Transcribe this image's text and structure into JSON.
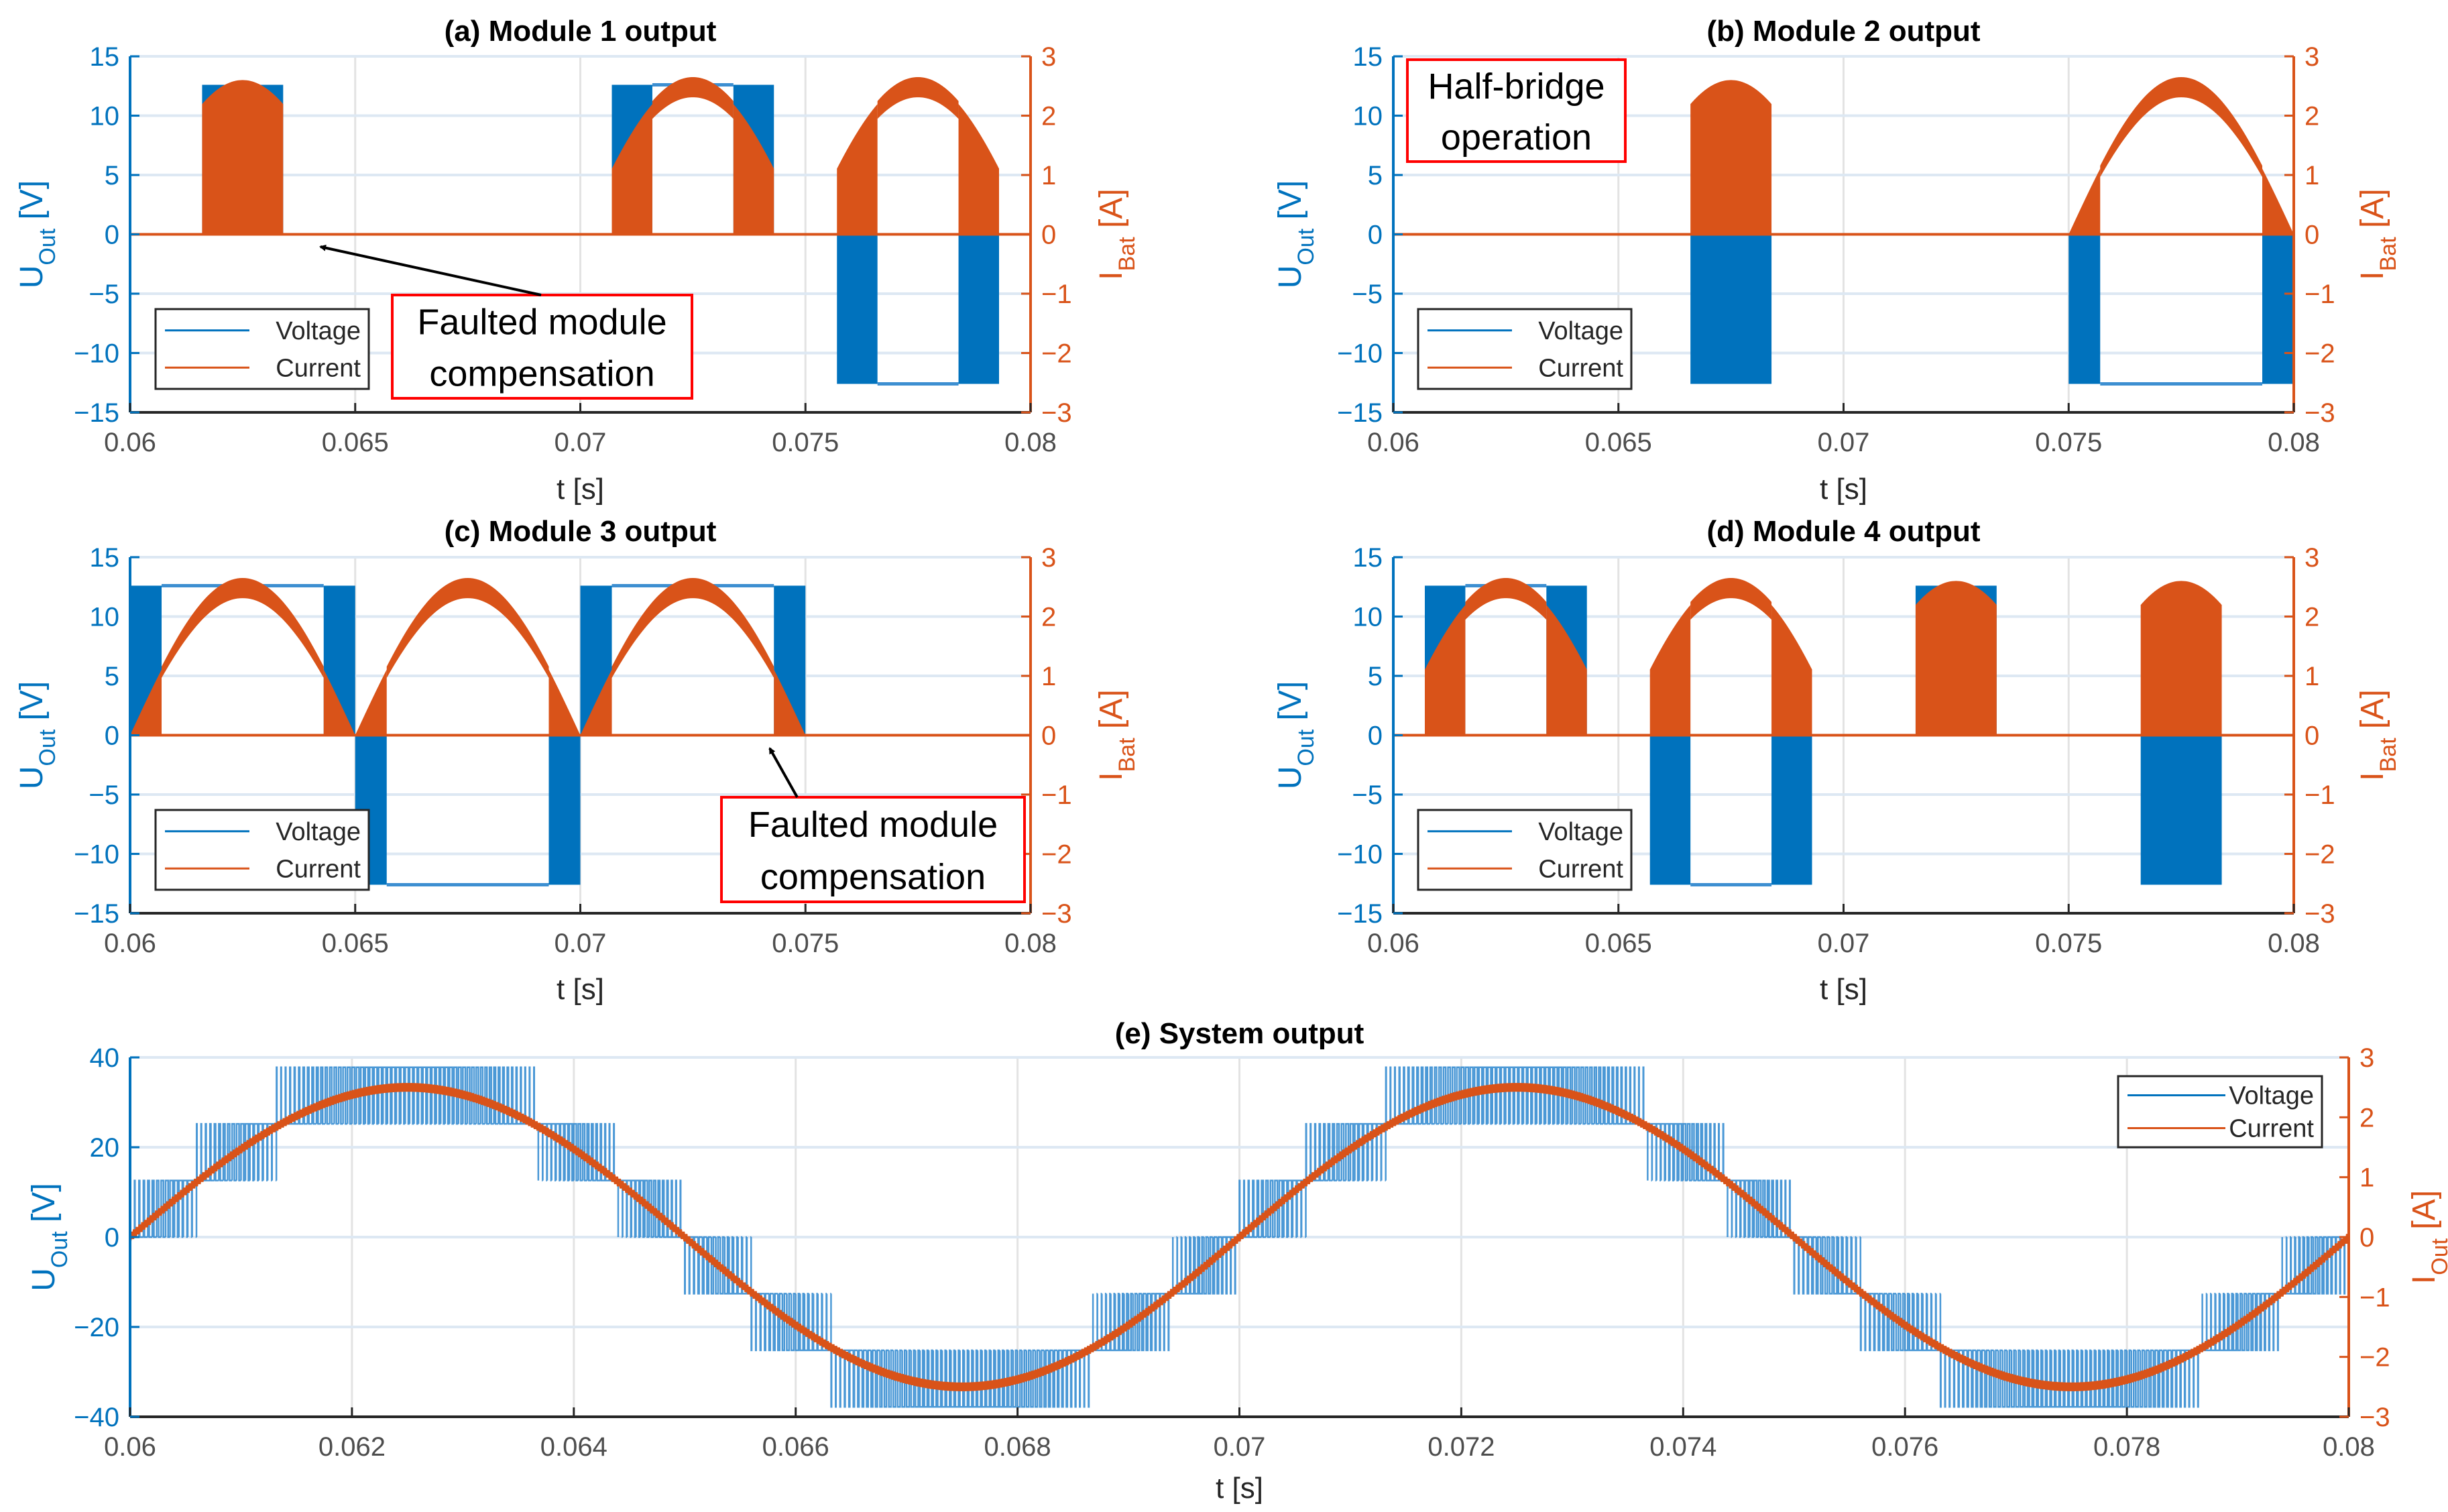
{
  "colors": {
    "voltage": "#0072BD",
    "current": "#D95319",
    "annotation_box": "#FF0000"
  },
  "chart_data": [
    {
      "type": "line",
      "title": "(a) Module 1 output",
      "xlabel": "t [s]",
      "ylabel_left": {
        "symbol": "U",
        "subscript": "Out",
        "unit": " [V]"
      },
      "ylabel_right": {
        "symbol": "I",
        "subscript": "Bat",
        "unit": " [A]"
      },
      "xlim": [
        0.06,
        0.08
      ],
      "ylim": [
        -15,
        15
      ],
      "y2lim": [
        -3,
        3
      ],
      "xticks": [
        0.06,
        0.065,
        0.07,
        0.075,
        0.08
      ],
      "xtick_labels": [
        "0.06",
        "0.065",
        "0.07",
        "0.075",
        "0.08"
      ],
      "yticks": [
        -15,
        -10,
        -5,
        0,
        5,
        10,
        15
      ],
      "ytick_labels": [
        "−15",
        "−10",
        "−5",
        "0",
        "5",
        "10",
        "15"
      ],
      "y2ticks": [
        -3,
        -2,
        -1,
        0,
        1,
        2,
        3
      ],
      "y2tick_labels": [
        "−3",
        "−2",
        "−1",
        "0",
        "1",
        "2",
        "3"
      ],
      "grid": true,
      "legend": {
        "entries": [
          "Voltage",
          "Current"
        ],
        "placement": "lower-left"
      },
      "series": [
        {
          "name": "Voltage",
          "axis": "left",
          "level_V": 12.6,
          "segments": [
            [
              0.0616,
              0.0634,
              "pwm",
              1
            ],
            [
              0.0707,
              0.0716,
              "pwm",
              1
            ],
            [
              0.0716,
              0.0734,
              "on",
              1
            ],
            [
              0.0734,
              0.0743,
              "pwm",
              1
            ],
            [
              0.0757,
              0.0766,
              "pwm",
              -1
            ],
            [
              0.0766,
              0.0784,
              "on",
              -1
            ],
            [
              0.0784,
              0.0793,
              "pwm",
              -1
            ]
          ]
        },
        {
          "name": "Current",
          "axis": "right",
          "peak_A": 2.6,
          "frequency_hz": 100
        }
      ],
      "annotations": [
        {
          "lines": [
            "Faulted module",
            "compensation"
          ],
          "arrow": true
        }
      ]
    },
    {
      "type": "line",
      "title": "(b) Module 2 output",
      "xlabel": "t [s]",
      "ylabel_left": {
        "symbol": "U",
        "subscript": "Out",
        "unit": " [V]"
      },
      "ylabel_right": {
        "symbol": "I",
        "subscript": "Bat",
        "unit": " [A]"
      },
      "xlim": [
        0.06,
        0.08
      ],
      "ylim": [
        -15,
        15
      ],
      "y2lim": [
        -3,
        3
      ],
      "xticks": [
        0.06,
        0.065,
        0.07,
        0.075,
        0.08
      ],
      "xtick_labels": [
        "0.06",
        "0.065",
        "0.07",
        "0.075",
        "0.08"
      ],
      "yticks": [
        -15,
        -10,
        -5,
        0,
        5,
        10,
        15
      ],
      "ytick_labels": [
        "−15",
        "−10",
        "−5",
        "0",
        "5",
        "10",
        "15"
      ],
      "y2ticks": [
        -3,
        -2,
        -1,
        0,
        1,
        2,
        3
      ],
      "y2tick_labels": [
        "−3",
        "−2",
        "−1",
        "0",
        "1",
        "2",
        "3"
      ],
      "grid": true,
      "legend": {
        "entries": [
          "Voltage",
          "Current"
        ],
        "placement": "lower-left"
      },
      "series": [
        {
          "name": "Voltage",
          "axis": "left",
          "level_V": 12.6,
          "segments": [
            [
              0.0666,
              0.0684,
              "pwm",
              -1
            ],
            [
              0.075,
              0.0757,
              "pwm",
              -1
            ],
            [
              0.0757,
              0.0793,
              "on",
              -1
            ],
            [
              0.0793,
              0.08,
              "pwm",
              -1
            ]
          ]
        },
        {
          "name": "Current",
          "axis": "right",
          "peak_A": 2.6,
          "frequency_hz": 100
        }
      ],
      "annotations": [
        {
          "lines": [
            "Half-bridge",
            "operation"
          ],
          "arrow": false
        }
      ]
    },
    {
      "type": "line",
      "title": "(c) Module 3 output",
      "xlabel": "t [s]",
      "ylabel_left": {
        "symbol": "U",
        "subscript": "Out",
        "unit": " [V]"
      },
      "ylabel_right": {
        "symbol": "I",
        "subscript": "Bat",
        "unit": " [A]"
      },
      "xlim": [
        0.06,
        0.08
      ],
      "ylim": [
        -15,
        15
      ],
      "y2lim": [
        -3,
        3
      ],
      "xticks": [
        0.06,
        0.065,
        0.07,
        0.075,
        0.08
      ],
      "xtick_labels": [
        "0.06",
        "0.065",
        "0.07",
        "0.075",
        "0.08"
      ],
      "yticks": [
        -15,
        -10,
        -5,
        0,
        5,
        10,
        15
      ],
      "ytick_labels": [
        "−15",
        "−10",
        "−5",
        "0",
        "5",
        "10",
        "15"
      ],
      "y2ticks": [
        -3,
        -2,
        -1,
        0,
        1,
        2,
        3
      ],
      "y2tick_labels": [
        "−3",
        "−2",
        "−1",
        "0",
        "1",
        "2",
        "3"
      ],
      "grid": true,
      "legend": {
        "entries": [
          "Voltage",
          "Current"
        ],
        "placement": "lower-left"
      },
      "series": [
        {
          "name": "Voltage",
          "axis": "left",
          "level_V": 12.6,
          "segments": [
            [
              0.06,
              0.0607,
              "pwm",
              1
            ],
            [
              0.0607,
              0.0643,
              "on",
              1
            ],
            [
              0.0643,
              0.065,
              "pwm",
              1
            ],
            [
              0.065,
              0.0657,
              "pwm",
              -1
            ],
            [
              0.0657,
              0.0693,
              "on",
              -1
            ],
            [
              0.0693,
              0.07,
              "pwm",
              -1
            ],
            [
              0.07,
              0.0707,
              "pwm",
              1
            ],
            [
              0.0707,
              0.0743,
              "on",
              1
            ],
            [
              0.0743,
              0.075,
              "pwm",
              1
            ]
          ]
        },
        {
          "name": "Current",
          "axis": "right",
          "peak_A": 2.6,
          "frequency_hz": 100
        }
      ],
      "annotations": [
        {
          "lines": [
            "Faulted module",
            "compensation"
          ],
          "arrow": true
        }
      ]
    },
    {
      "type": "line",
      "title": "(d) Module 4 output",
      "xlabel": "t [s]",
      "ylabel_left": {
        "symbol": "U",
        "subscript": "Out",
        "unit": " [V]"
      },
      "ylabel_right": {
        "symbol": "I",
        "subscript": "Bat",
        "unit": " [A]"
      },
      "xlim": [
        0.06,
        0.08
      ],
      "ylim": [
        -15,
        15
      ],
      "y2lim": [
        -3,
        3
      ],
      "xticks": [
        0.06,
        0.065,
        0.07,
        0.075,
        0.08
      ],
      "xtick_labels": [
        "0.06",
        "0.065",
        "0.07",
        "0.075",
        "0.08"
      ],
      "yticks": [
        -15,
        -10,
        -5,
        0,
        5,
        10,
        15
      ],
      "ytick_labels": [
        "−15",
        "−10",
        "−5",
        "0",
        "5",
        "10",
        "15"
      ],
      "y2ticks": [
        -3,
        -2,
        -1,
        0,
        1,
        2,
        3
      ],
      "y2tick_labels": [
        "−3",
        "−2",
        "−1",
        "0",
        "1",
        "2",
        "3"
      ],
      "grid": true,
      "legend": {
        "entries": [
          "Voltage",
          "Current"
        ],
        "placement": "lower-left"
      },
      "series": [
        {
          "name": "Voltage",
          "axis": "left",
          "level_V": 12.6,
          "segments": [
            [
              0.0607,
              0.0616,
              "pwm",
              1
            ],
            [
              0.0616,
              0.0634,
              "on",
              1
            ],
            [
              0.0634,
              0.0643,
              "pwm",
              1
            ],
            [
              0.0657,
              0.0666,
              "pwm",
              -1
            ],
            [
              0.0666,
              0.0684,
              "on",
              -1
            ],
            [
              0.0684,
              0.0693,
              "pwm",
              -1
            ],
            [
              0.0716,
              0.0734,
              "pwm",
              1
            ],
            [
              0.0766,
              0.0784,
              "pwm",
              -1
            ]
          ]
        },
        {
          "name": "Current",
          "axis": "right",
          "peak_A": 2.6,
          "frequency_hz": 100
        }
      ],
      "annotations": []
    },
    {
      "type": "line",
      "title": "(e) System output",
      "xlabel": "t [s]",
      "ylabel_left": {
        "symbol": "U",
        "subscript": "Out",
        "unit": " [V]"
      },
      "ylabel_right": {
        "symbol": "I",
        "subscript": "Out",
        "unit": " [A]"
      },
      "xlim": [
        0.06,
        0.08
      ],
      "ylim": [
        -40,
        40
      ],
      "y2lim": [
        -3,
        3
      ],
      "xticks": [
        0.06,
        0.062,
        0.064,
        0.066,
        0.068,
        0.07,
        0.072,
        0.074,
        0.076,
        0.078,
        0.08
      ],
      "xtick_labels": [
        "0.06",
        "0.062",
        "0.064",
        "0.066",
        "0.068",
        "0.07",
        "0.072",
        "0.074",
        "0.076",
        "0.078",
        "0.08"
      ],
      "yticks": [
        -40,
        -20,
        0,
        20,
        40
      ],
      "ytick_labels": [
        "−40",
        "−20",
        "0",
        "20",
        "40"
      ],
      "y2ticks": [
        -3,
        -2,
        -1,
        0,
        1,
        2,
        3
      ],
      "y2tick_labels": [
        "−3",
        "−2",
        "−1",
        "0",
        "1",
        "2",
        "3"
      ],
      "grid": true,
      "legend": {
        "entries": [
          "Voltage",
          "Current"
        ],
        "placement": "top-right"
      },
      "series": [
        {
          "name": "Voltage",
          "axis": "left",
          "step_V": 12.6,
          "reference_amplitude_V": 34,
          "frequency_hz": 100,
          "switching_frequency_hz": 25000
        },
        {
          "name": "Current",
          "axis": "right",
          "amplitude_A": 2.5,
          "frequency_hz": 100
        }
      ],
      "annotations": []
    }
  ]
}
